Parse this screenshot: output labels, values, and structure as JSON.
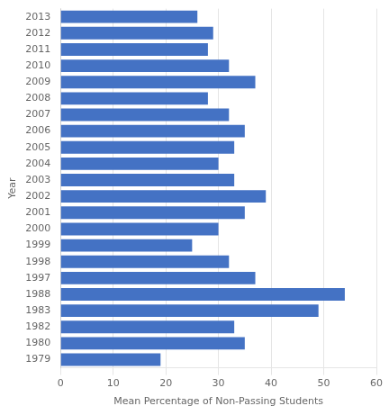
{
  "chart_data": {
    "type": "bar",
    "orientation": "horizontal",
    "categories": [
      "2013",
      "2012",
      "2011",
      "2010",
      "2009",
      "2008",
      "2007",
      "2006",
      "2005",
      "2004",
      "2003",
      "2002",
      "2001",
      "2000",
      "1999",
      "1998",
      "1997",
      "1988",
      "1983",
      "1982",
      "1980",
      "1979"
    ],
    "values": [
      26,
      29,
      28,
      32,
      37,
      28,
      32,
      35,
      33,
      30,
      33,
      39,
      35,
      30,
      25,
      32,
      37,
      54,
      49,
      33,
      35,
      19
    ],
    "color": "#4472C4",
    "xlabel": "Mean Percentage of Non-Passing Students",
    "ylabel": "Year",
    "xlim": [
      0,
      60
    ],
    "xticks": [
      0,
      10,
      20,
      30,
      40,
      50,
      60
    ],
    "grid": true
  }
}
